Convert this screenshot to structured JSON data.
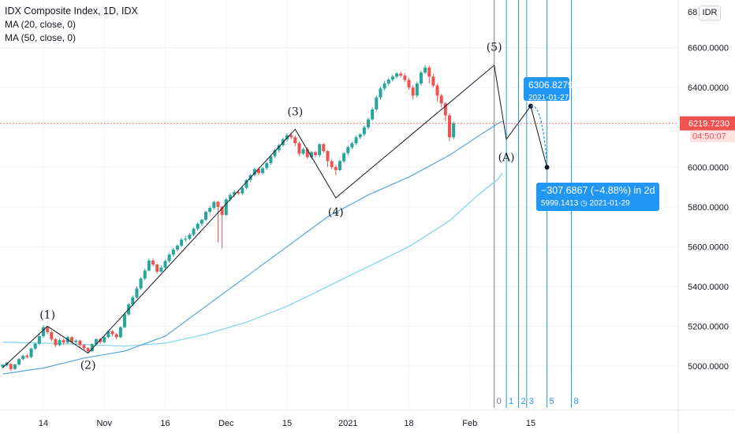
{
  "header": {
    "title": "IDX Composite Index, 1D, IDX",
    "ma1": "MA (20, close, 0)",
    "ma2": "MA (50, close, 0)",
    "currency_button": "IDR"
  },
  "colors": {
    "up": "#26a69a",
    "down": "#ef5350",
    "ma20": "#5aa6d6",
    "ma50": "#7fd3ea",
    "accent": "#2196f3",
    "grid": "#f0f3fa",
    "wave_line": "#131722"
  },
  "chart_data": {
    "type": "candlestick",
    "yaxis": {
      "ticks": [
        5000,
        5200,
        5400,
        5600,
        5800,
        6000,
        6200,
        6400,
        6600
      ],
      "tick_labels": [
        "5000.0000",
        "5200.0000",
        "5400.0000",
        "5600.0000",
        "5800.0000",
        "6000.0000",
        "6200.0000",
        "6400.0000",
        "6600.0000"
      ],
      "top_partial_label": "68",
      "ylim": [
        4790,
        6840
      ]
    },
    "xaxis": {
      "tick_labels": [
        "14",
        "Nov",
        "16",
        "Dec",
        "15",
        "2021",
        "18",
        "Feb",
        "15"
      ],
      "tick_day_index": [
        10,
        25,
        40,
        55,
        70,
        85,
        100,
        115,
        130
      ]
    },
    "grid": true,
    "last_price": {
      "value": 6219.723,
      "label": "6219.7230",
      "countdown": "04:50:07"
    },
    "candles": [
      [
        4995,
        5008,
        4988,
        5003
      ],
      [
        5003,
        5018,
        4998,
        5010
      ],
      [
        5010,
        4985,
        4975,
        5015
      ],
      [
        4985,
        5008,
        4980,
        5012
      ],
      [
        5008,
        5035,
        5002,
        5040
      ],
      [
        5035,
        5052,
        5028,
        5058
      ],
      [
        5052,
        5045,
        5038,
        5060
      ],
      [
        5045,
        5088,
        5040,
        5092
      ],
      [
        5088,
        5112,
        5082,
        5118
      ],
      [
        5112,
        5150,
        5105,
        5158
      ],
      [
        5150,
        5195,
        5142,
        5205
      ],
      [
        5195,
        5170,
        5160,
        5200
      ],
      [
        5170,
        5135,
        5125,
        5178
      ],
      [
        5135,
        5105,
        5095,
        5140
      ],
      [
        5105,
        5130,
        5098,
        5138
      ],
      [
        5130,
        5118,
        5105,
        5138
      ],
      [
        5118,
        5145,
        5110,
        5152
      ],
      [
        5145,
        5120,
        5112,
        5150
      ],
      [
        5120,
        5128,
        5108,
        5135
      ],
      [
        5128,
        5105,
        5095,
        5133
      ],
      [
        5105,
        5090,
        5078,
        5110
      ],
      [
        5090,
        5075,
        5065,
        5095
      ],
      [
        5075,
        5110,
        5070,
        5115
      ],
      [
        5110,
        5135,
        5103,
        5140
      ],
      [
        5135,
        5120,
        5110,
        5142
      ],
      [
        5120,
        5145,
        5115,
        5150
      ],
      [
        5145,
        5175,
        5140,
        5180
      ],
      [
        5175,
        5160,
        5150,
        5180
      ],
      [
        5160,
        5145,
        5135,
        5165
      ],
      [
        5145,
        5195,
        5140,
        5200
      ],
      [
        5195,
        5260,
        5190,
        5268
      ],
      [
        5260,
        5310,
        5252,
        5318
      ],
      [
        5310,
        5345,
        5300,
        5355
      ],
      [
        5345,
        5390,
        5340,
        5400
      ],
      [
        5390,
        5440,
        5382,
        5448
      ],
      [
        5440,
        5480,
        5432,
        5490
      ],
      [
        5480,
        5530,
        5475,
        5540
      ],
      [
        5530,
        5510,
        5500,
        5540
      ],
      [
        5510,
        5475,
        5465,
        5515
      ],
      [
        5475,
        5495,
        5470,
        5505
      ],
      [
        5495,
        5528,
        5485,
        5535
      ],
      [
        5528,
        5560,
        5520,
        5568
      ],
      [
        5560,
        5585,
        5550,
        5595
      ],
      [
        5585,
        5605,
        5578,
        5612
      ],
      [
        5605,
        5635,
        5598,
        5645
      ],
      [
        5635,
        5640,
        5625,
        5655
      ],
      [
        5640,
        5660,
        5632,
        5668
      ],
      [
        5660,
        5690,
        5652,
        5698
      ],
      [
        5690,
        5715,
        5680,
        5722
      ],
      [
        5715,
        5735,
        5705,
        5742
      ],
      [
        5735,
        5775,
        5728,
        5780
      ],
      [
        5775,
        5795,
        5765,
        5805
      ],
      [
        5795,
        5825,
        5785,
        5830
      ],
      [
        5825,
        5800,
        5620,
        5830
      ],
      [
        5800,
        5760,
        5590,
        5805
      ],
      [
        5760,
        5838,
        5752,
        5845
      ],
      [
        5838,
        5860,
        5828,
        5870
      ],
      [
        5860,
        5875,
        5848,
        5885
      ],
      [
        5875,
        5868,
        5858,
        5885
      ],
      [
        5868,
        5895,
        5860,
        5905
      ],
      [
        5895,
        5935,
        5888,
        5940
      ],
      [
        5935,
        5960,
        5925,
        5968
      ],
      [
        5960,
        5990,
        5952,
        5995
      ],
      [
        5990,
        5970,
        5960,
        5998
      ],
      [
        5970,
        5995,
        5962,
        6000
      ],
      [
        5995,
        6020,
        5985,
        6028
      ],
      [
        6020,
        6055,
        6010,
        6062
      ],
      [
        6055,
        6085,
        6045,
        6092
      ],
      [
        6085,
        6110,
        6075,
        6118
      ],
      [
        6110,
        6140,
        6102,
        6148
      ],
      [
        6140,
        6160,
        6130,
        6170
      ],
      [
        6160,
        6150,
        6140,
        6172
      ],
      [
        6150,
        6120,
        6105,
        6160
      ],
      [
        6120,
        6068,
        6055,
        6128
      ],
      [
        6068,
        6090,
        6060,
        6098
      ],
      [
        6090,
        6050,
        6040,
        6100
      ],
      [
        6050,
        6075,
        6040,
        6082
      ],
      [
        6075,
        6060,
        6050,
        6082
      ],
      [
        6060,
        6115,
        6050,
        6120
      ],
      [
        6115,
        6080,
        6070,
        6122
      ],
      [
        6080,
        6030,
        6000,
        6085
      ],
      [
        6030,
        6000,
        5990,
        6040
      ],
      [
        6000,
        5985,
        5960,
        6010
      ],
      [
        5985,
        6030,
        5980,
        6038
      ],
      [
        6030,
        6070,
        6020,
        6075
      ],
      [
        6070,
        6100,
        6060,
        6108
      ],
      [
        6100,
        6120,
        6090,
        6128
      ],
      [
        6120,
        6150,
        6110,
        6158
      ],
      [
        6150,
        6165,
        6140,
        6170
      ],
      [
        6165,
        6200,
        6155,
        6210
      ],
      [
        6200,
        6240,
        6190,
        6250
      ],
      [
        6240,
        6290,
        6232,
        6300
      ],
      [
        6290,
        6350,
        6280,
        6360
      ],
      [
        6350,
        6395,
        6340,
        6405
      ],
      [
        6395,
        6420,
        6385,
        6432
      ],
      [
        6420,
        6440,
        6410,
        6450
      ],
      [
        6440,
        6455,
        6430,
        6465
      ],
      [
        6455,
        6470,
        6445,
        6478
      ],
      [
        6470,
        6460,
        6450,
        6480
      ],
      [
        6460,
        6438,
        6428,
        6472
      ],
      [
        6438,
        6400,
        6390,
        6448
      ],
      [
        6400,
        6360,
        6340,
        6410
      ],
      [
        6360,
        6420,
        6350,
        6430
      ],
      [
        6420,
        6475,
        6410,
        6485
      ],
      [
        6475,
        6500,
        6468,
        6512
      ],
      [
        6500,
        6455,
        6420,
        6510
      ],
      [
        6455,
        6410,
        6400,
        6470
      ],
      [
        6410,
        6360,
        6330,
        6420
      ],
      [
        6360,
        6320,
        6300,
        6368
      ],
      [
        6320,
        6260,
        6230,
        6325
      ],
      [
        6260,
        6150,
        6130,
        6270
      ],
      [
        6150,
        6219.7,
        6140,
        6230
      ]
    ],
    "ma20": [
      [
        0,
        4960
      ],
      [
        10,
        4990
      ],
      [
        20,
        5040
      ],
      [
        30,
        5075
      ],
      [
        40,
        5150
      ],
      [
        50,
        5300
      ],
      [
        60,
        5450
      ],
      [
        70,
        5600
      ],
      [
        80,
        5750
      ],
      [
        90,
        5860
      ],
      [
        100,
        5950
      ],
      [
        110,
        6060
      ],
      [
        117,
        6155
      ],
      [
        122,
        6220
      ],
      [
        123,
        6230
      ]
    ],
    "ma50": [
      [
        0,
        5120
      ],
      [
        10,
        5115
      ],
      [
        20,
        5108
      ],
      [
        30,
        5100
      ],
      [
        40,
        5115
      ],
      [
        50,
        5160
      ],
      [
        60,
        5220
      ],
      [
        70,
        5300
      ],
      [
        80,
        5400
      ],
      [
        90,
        5500
      ],
      [
        100,
        5600
      ],
      [
        110,
        5730
      ],
      [
        117,
        5860
      ],
      [
        122,
        5940
      ],
      [
        123,
        5970
      ]
    ],
    "elliott_wave_path": [
      [
        0,
        4992
      ],
      [
        11,
        5200
      ],
      [
        21,
        5065
      ],
      [
        72,
        6190
      ],
      [
        82,
        5845
      ],
      [
        121,
        6512
      ],
      [
        124,
        6140
      ],
      [
        130,
        6306.8279
      ],
      [
        134,
        5999.1413
      ]
    ],
    "wave_labels": [
      {
        "text": "(1)",
        "x": 11,
        "y": 5240
      },
      {
        "text": "(2)",
        "x": 21,
        "y": 4985
      },
      {
        "text": "(3)",
        "x": 72,
        "y": 6260
      },
      {
        "text": "(4)",
        "x": 82,
        "y": 5755
      },
      {
        "text": "(5)",
        "x": 121,
        "y": 6585
      },
      {
        "text": "(A)",
        "x": 124,
        "y": 6030
      }
    ],
    "fib_time_zones": {
      "start_index": 121,
      "labels": [
        "0",
        "1",
        "2",
        "3",
        "5",
        "8"
      ],
      "offsets": [
        0,
        3,
        6,
        8,
        13,
        19
      ]
    },
    "annotations": {
      "point_b": {
        "price": "6306.8279",
        "date": "2021-01-27",
        "x": 130,
        "y": 6306.8279
      },
      "projection": {
        "change": "−307.6867 (−4.88%) in 2d",
        "detail": "5999.1413 ◷ 2021-01-29",
        "x": 134,
        "y": 5999.1413
      }
    }
  }
}
